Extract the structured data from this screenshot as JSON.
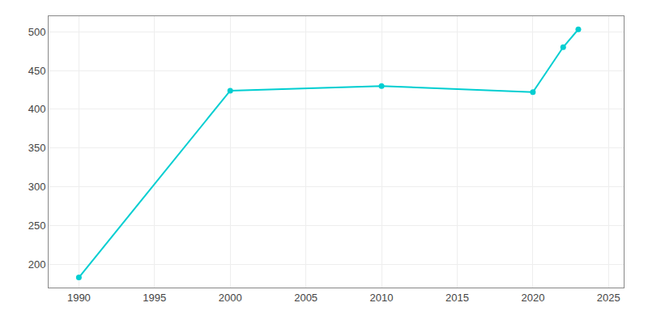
{
  "chart_data": {
    "type": "line",
    "x": [
      1990,
      2000,
      2010,
      2020,
      2022,
      2023
    ],
    "values": [
      183,
      424,
      430,
      422,
      480,
      503
    ],
    "color": "#00CED1",
    "marker": "circle",
    "xlim": [
      1988,
      2026
    ],
    "xticks": [
      1990,
      1995,
      2000,
      2005,
      2010,
      2015,
      2020,
      2025
    ],
    "ylim": [
      170,
      520
    ],
    "yticks": [
      200,
      250,
      300,
      350,
      400,
      450,
      500
    ],
    "grid": true
  }
}
